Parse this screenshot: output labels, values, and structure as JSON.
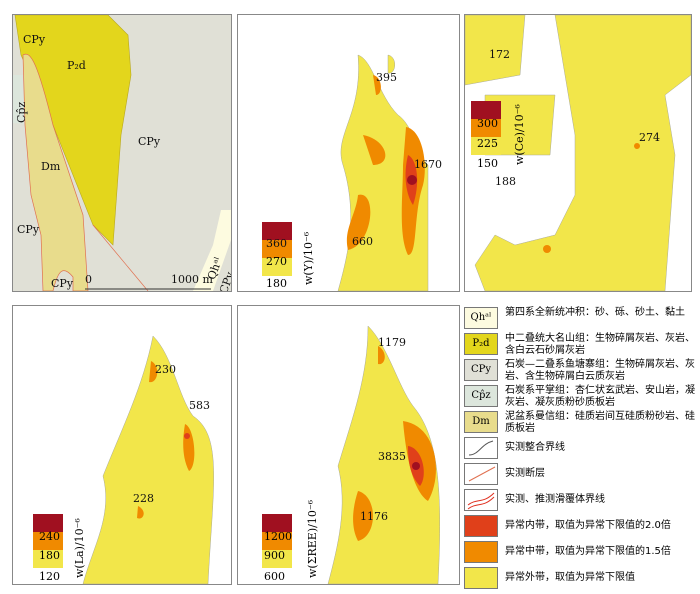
{
  "colors": {
    "outer": "#f2e64a",
    "middle": "#f08a00",
    "inner": "#e0401a",
    "peak": "#a01020",
    "CPy": "#e0e0d6",
    "P2d": "#e3d61c",
    "Dm": "#e8dc8c",
    "Qh": "#fdfbe0",
    "Cpz": "#dce6dc"
  },
  "geology": {
    "labels": [
      "CPy",
      "P₂d",
      "Cp̂z",
      "Dm",
      "CPy",
      "CPy",
      "CPy",
      "Qhᵃˡ",
      "CPy"
    ],
    "scale_start": "0",
    "scale_end": "1000 m"
  },
  "panels": {
    "Y": {
      "axis": "w(Y)/10⁻⁶",
      "ticks": [
        "360",
        "270",
        "180"
      ],
      "annotations": [
        "395",
        "1670",
        "660"
      ]
    },
    "Ce": {
      "axis": "w(Ce)/10⁻⁶",
      "ticks": [
        "300",
        "225",
        "150"
      ],
      "annotations": [
        "172",
        "274",
        "188"
      ]
    },
    "La": {
      "axis": "w(La)/10⁻⁶",
      "ticks": [
        "240",
        "180",
        "120"
      ],
      "annotations": [
        "230",
        "583",
        "228"
      ]
    },
    "REE": {
      "axis": "w(ΣREE)/10⁻⁶",
      "ticks": [
        "1200",
        "900",
        "600"
      ],
      "annotations": [
        "1179",
        "3835",
        "1176"
      ]
    }
  },
  "legend": [
    {
      "symbol": "Qhᵃˡ",
      "text": "第四系全新统冲积：砂、砾、砂土、黏土"
    },
    {
      "symbol": "P₂d",
      "text": "中二叠统大名山组：生物碎屑灰岩、灰岩、含白云石砂屑灰岩"
    },
    {
      "symbol": "CPy",
      "text": "石炭—二叠系鱼塘寨组：生物碎屑灰岩、灰岩、含生物碎屑白云质灰岩"
    },
    {
      "symbol": "Cp̂z",
      "text": "石炭系平掌组：杏仁状玄武岩、安山岩，凝灰岩、凝灰质粉砂质板岩"
    },
    {
      "symbol": "Dm",
      "text": "泥盆系曼信组：硅质岩间互硅质粉砂岩、硅质板岩"
    },
    {
      "symbol": "",
      "text": "实测整合界线"
    },
    {
      "symbol": "",
      "text": "实测断层"
    },
    {
      "symbol": "",
      "text": "实测、推测滑覆体界线"
    },
    {
      "symbol": "",
      "text": "异常内带，取值为异常下限值的2.0倍"
    },
    {
      "symbol": "",
      "text": "异常中带，取值为异常下限值的1.5倍"
    },
    {
      "symbol": "",
      "text": "异常外带，取值为异常下限值"
    }
  ]
}
